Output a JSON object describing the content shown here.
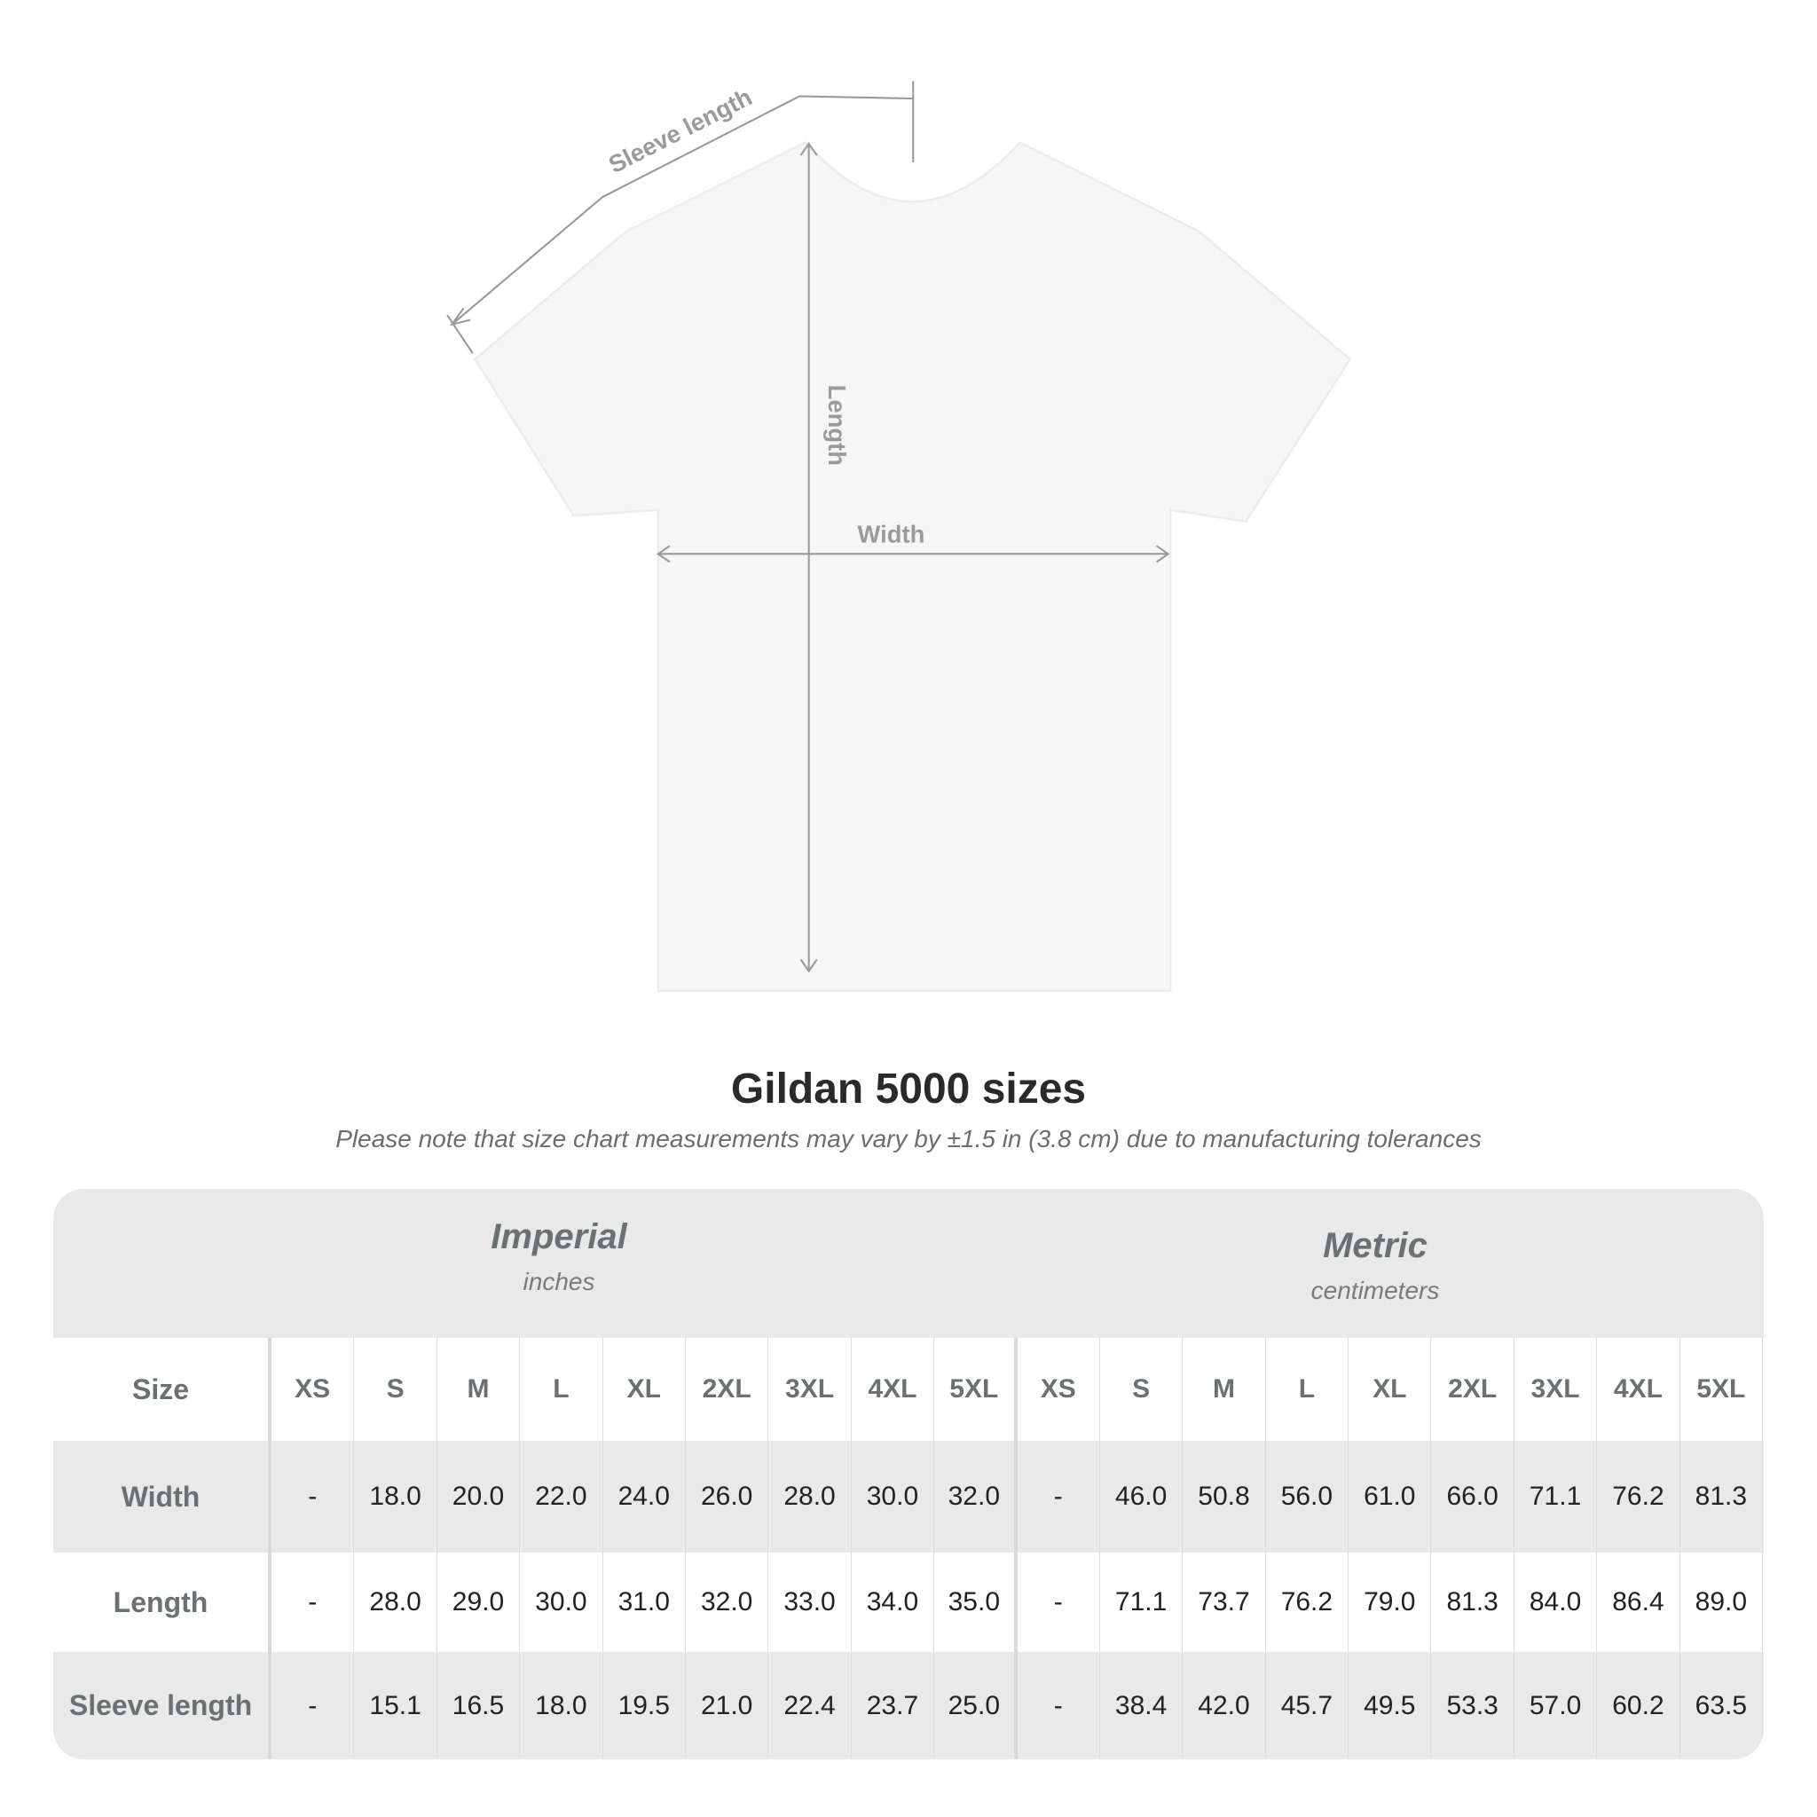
{
  "diagram": {
    "labels": {
      "sleeve": "Sleeve length",
      "length": "Length",
      "width": "Width"
    },
    "colors": {
      "shirt": "#f7f7f7",
      "lines": "#9a9a9a",
      "label": "#9a9a9a"
    }
  },
  "title": "Gildan 5000 sizes",
  "note": "Please note that size chart measurements may vary by ±1.5 in (3.8 cm) due to manufacturing tolerances",
  "table": {
    "imperial": {
      "name": "Imperial",
      "unit": "inches"
    },
    "metric": {
      "name": "Metric",
      "unit": "centimeters"
    },
    "size_label": "Size",
    "sizes": [
      "XS",
      "S",
      "M",
      "L",
      "XL",
      "2XL",
      "3XL",
      "4XL",
      "5XL"
    ],
    "rows": [
      {
        "label": "Width",
        "imperial": [
          "-",
          "18.0",
          "20.0",
          "22.0",
          "24.0",
          "26.0",
          "28.0",
          "30.0",
          "32.0"
        ],
        "metric": [
          "-",
          "46.0",
          "50.8",
          "56.0",
          "61.0",
          "66.0",
          "71.1",
          "76.2",
          "81.3"
        ]
      },
      {
        "label": "Length",
        "imperial": [
          "-",
          "28.0",
          "29.0",
          "30.0",
          "31.0",
          "32.0",
          "33.0",
          "34.0",
          "35.0"
        ],
        "metric": [
          "-",
          "71.1",
          "73.7",
          "76.2",
          "79.0",
          "81.3",
          "84.0",
          "86.4",
          "89.0"
        ]
      },
      {
        "label": "Sleeve length",
        "imperial": [
          "-",
          "15.1",
          "16.5",
          "18.0",
          "19.5",
          "21.0",
          "22.4",
          "23.7",
          "25.0"
        ],
        "metric": [
          "-",
          "38.4",
          "42.0",
          "45.7",
          "49.5",
          "53.3",
          "57.0",
          "60.2",
          "63.5"
        ]
      }
    ]
  }
}
